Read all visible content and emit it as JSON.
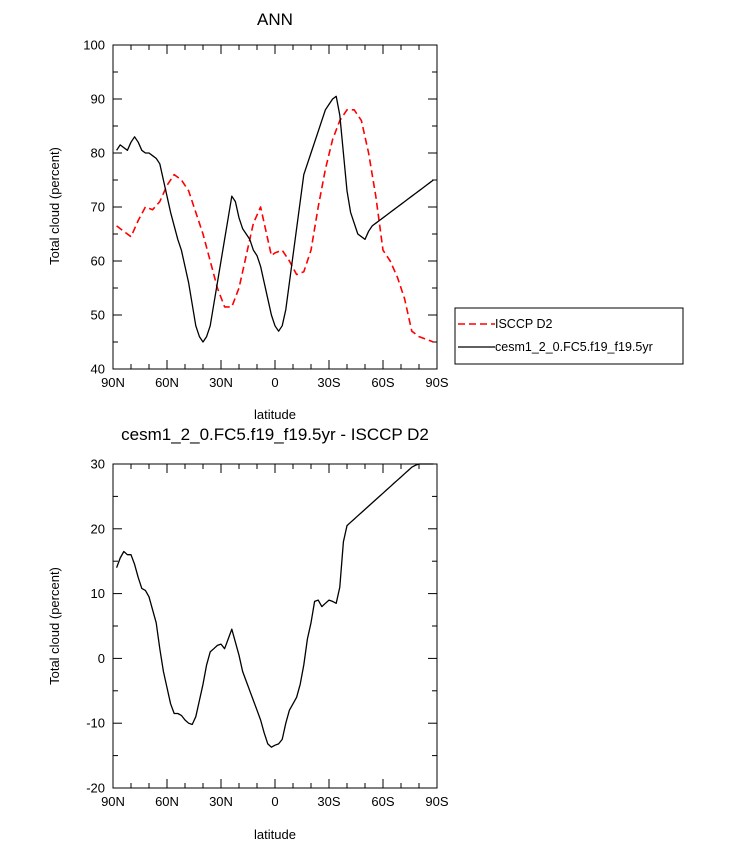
{
  "chart_data": [
    {
      "type": "line",
      "title": "ANN",
      "xlabel": "latitude",
      "ylabel": "Total cloud (percent)",
      "xlim": [
        90,
        -90
      ],
      "ylim": [
        40,
        100
      ],
      "x_ticks": [
        "90N",
        "60N",
        "30N",
        "0",
        "30S",
        "60S",
        "90S"
      ],
      "y_ticks": [
        "40",
        "50",
        "60",
        "70",
        "80",
        "90",
        "100"
      ],
      "legend_position": "right",
      "series": [
        {
          "name": "ISCCP D2",
          "color": "#ff0000",
          "dash": "dashed",
          "x": [
            88,
            84,
            80,
            76,
            72,
            68,
            64,
            60,
            56,
            52,
            48,
            44,
            40,
            36,
            32,
            28,
            24,
            20,
            16,
            12,
            8,
            4,
            2,
            0,
            -4,
            -8,
            -12,
            -16,
            -20,
            -24,
            -28,
            -32,
            -36,
            -40,
            -44,
            -48,
            -52,
            -56,
            -60,
            -64,
            -68,
            -72,
            -76,
            -80,
            -84,
            -88
          ],
          "y": [
            66.5,
            65.5,
            64.5,
            67.5,
            70,
            69.5,
            71,
            74,
            76,
            75,
            73,
            69,
            65,
            60,
            55,
            51.5,
            51.5,
            55,
            61,
            67,
            70,
            64,
            61,
            61.5,
            62,
            60,
            57.5,
            58,
            62,
            70,
            77,
            82.5,
            86,
            88,
            88,
            86,
            80,
            72,
            62,
            60,
            57,
            53,
            47,
            46,
            45.5,
            45
          ]
        },
        {
          "name": "cesm1_2_0.FC5.f19_f19.5yr",
          "color": "#000000",
          "dash": "solid",
          "x": [
            88,
            86,
            84,
            82,
            80,
            78,
            76,
            74,
            72,
            70,
            68,
            66,
            64,
            62,
            60,
            58,
            56,
            54,
            52,
            50,
            48,
            46,
            44,
            42,
            40,
            38,
            36,
            34,
            32,
            30,
            28,
            26,
            24,
            22,
            20,
            18,
            16,
            14,
            12,
            10,
            8,
            6,
            4,
            2,
            0,
            -2,
            -4,
            -6,
            -8,
            -10,
            -12,
            -14,
            -16,
            -18,
            -20,
            -22,
            -24,
            -26,
            -28,
            -30,
            -32,
            -34,
            -36,
            -38,
            -40,
            -42,
            -44,
            -46,
            -48,
            -50,
            -52,
            -54,
            -56,
            -58,
            -60,
            -62,
            -64,
            -66,
            -68,
            -70,
            -72,
            -74,
            -76,
            -78,
            -80,
            -82,
            -84,
            -86,
            -88
          ],
          "y": [
            80.5,
            81.5,
            81,
            80.5,
            82,
            83,
            82,
            80.5,
            80,
            80,
            79.5,
            79,
            78,
            75,
            72,
            69,
            66.5,
            64,
            62,
            59,
            56,
            52,
            48,
            46,
            45,
            46,
            48,
            52,
            56,
            60,
            64,
            68,
            72,
            71,
            68,
            66,
            65,
            64,
            62,
            61,
            59,
            56,
            53,
            50,
            48,
            47,
            48,
            51,
            56,
            61,
            66,
            71,
            76,
            78,
            80,
            82,
            84,
            86,
            88,
            89,
            90,
            90.5,
            87,
            80,
            73,
            69,
            67,
            65,
            64.5,
            64,
            65.5,
            66.5,
            67,
            67.5,
            68,
            68.5,
            69,
            69.5,
            70,
            70.5,
            71,
            71.5,
            72,
            72.5,
            73,
            73.5,
            74,
            74.5,
            75
          ]
        }
      ]
    },
    {
      "type": "line",
      "title": "cesm1_2_0.FC5.f19_f19.5yr - ISCCP D2",
      "xlabel": "latitude",
      "ylabel": "Total cloud (percent)",
      "xlim": [
        90,
        -90
      ],
      "ylim": [
        -20,
        30
      ],
      "x_ticks": [
        "90N",
        "60N",
        "30N",
        "0",
        "30S",
        "60S",
        "90S"
      ],
      "y_ticks": [
        "-20",
        "-10",
        "0",
        "10",
        "20",
        "30"
      ],
      "series": [
        {
          "color": "#000000",
          "x": [
            88,
            86,
            84,
            82,
            80,
            78,
            76,
            74,
            72,
            70,
            68,
            66,
            64,
            62,
            60,
            58,
            56,
            54,
            52,
            50,
            48,
            46,
            44,
            42,
            40,
            38,
            36,
            34,
            32,
            30,
            28,
            26,
            24,
            22,
            20,
            18,
            16,
            14,
            12,
            10,
            8,
            6,
            4,
            2,
            0,
            -2,
            -4,
            -6,
            -8,
            -10,
            -12,
            -14,
            -16,
            -18,
            -20,
            -22,
            -24,
            -26,
            -28,
            -30,
            -32,
            -34,
            -36,
            -38,
            -40,
            -42,
            -44,
            -46,
            -48,
            -50,
            -52,
            -54,
            -56,
            -58,
            -60,
            -62,
            -64,
            -66,
            -68,
            -70,
            -72,
            -74,
            -76,
            -78,
            -80,
            -82,
            -84,
            -86,
            -88
          ],
          "y": [
            14,
            15.5,
            16.5,
            16,
            16,
            14.5,
            12.5,
            10.8,
            10.5,
            9.5,
            7.5,
            5.5,
            1.5,
            -2,
            -4.5,
            -7,
            -8.5,
            -8.5,
            -8.8,
            -9.5,
            -10,
            -10.2,
            -9,
            -6.5,
            -4,
            -1,
            1,
            1.5,
            2,
            2.2,
            1.5,
            3,
            4.5,
            2.5,
            0.5,
            -2,
            -3.5,
            -5,
            -6.5,
            -8,
            -9.5,
            -11.5,
            -13.2,
            -13.7,
            -13.4,
            -13.2,
            -12.5,
            -10,
            -8,
            -7,
            -6,
            -4,
            -1,
            3,
            5.5,
            8.8,
            9,
            8,
            8.5,
            9,
            8.8,
            8.5,
            11,
            18,
            20.5,
            21,
            21.5,
            22,
            22.5,
            23,
            23.5,
            24,
            24.5,
            25,
            25.5,
            26,
            26.5,
            27,
            27.5,
            28,
            28.5,
            29,
            29.5,
            29.8,
            30,
            30,
            30,
            30,
            30
          ]
        }
      ]
    }
  ]
}
